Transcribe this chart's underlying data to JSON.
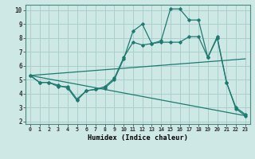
{
  "xlabel": "Humidex (Indice chaleur)",
  "background_color": "#cde8e5",
  "grid_color": "#aacfcc",
  "line_color": "#1e7a70",
  "xlim": [
    -0.5,
    23.5
  ],
  "ylim": [
    1.8,
    10.4
  ],
  "xticks": [
    0,
    1,
    2,
    3,
    4,
    5,
    6,
    7,
    8,
    9,
    10,
    11,
    12,
    13,
    14,
    15,
    16,
    17,
    18,
    19,
    20,
    21,
    22,
    23
  ],
  "yticks": [
    2,
    3,
    4,
    5,
    6,
    7,
    8,
    9,
    10
  ],
  "series1_x": [
    0,
    1,
    2,
    3,
    4,
    5,
    6,
    7,
    8,
    9,
    10,
    11,
    12,
    13,
    14,
    15,
    16,
    17,
    18,
    19,
    20,
    21,
    22,
    23
  ],
  "series1_y": [
    5.3,
    4.8,
    4.8,
    4.5,
    4.5,
    3.6,
    4.2,
    4.3,
    4.4,
    5.0,
    6.5,
    8.5,
    9.0,
    7.6,
    7.8,
    10.1,
    10.1,
    9.3,
    9.3,
    6.6,
    8.1,
    4.8,
    3.0,
    2.5
  ],
  "series2_x": [
    0,
    1,
    2,
    3,
    4,
    5,
    6,
    7,
    8,
    9,
    10,
    11,
    12,
    13,
    14,
    15,
    16,
    17,
    18,
    19,
    20,
    21,
    22,
    23
  ],
  "series2_y": [
    5.3,
    4.8,
    4.8,
    4.6,
    4.4,
    3.5,
    4.2,
    4.3,
    4.5,
    5.1,
    6.6,
    7.7,
    7.5,
    7.6,
    7.7,
    7.7,
    7.7,
    8.1,
    8.1,
    6.6,
    8.0,
    4.8,
    2.9,
    2.4
  ],
  "series3_x": [
    0,
    23
  ],
  "series3_y": [
    5.3,
    6.5
  ],
  "series4_x": [
    0,
    23
  ],
  "series4_y": [
    5.3,
    2.4
  ]
}
